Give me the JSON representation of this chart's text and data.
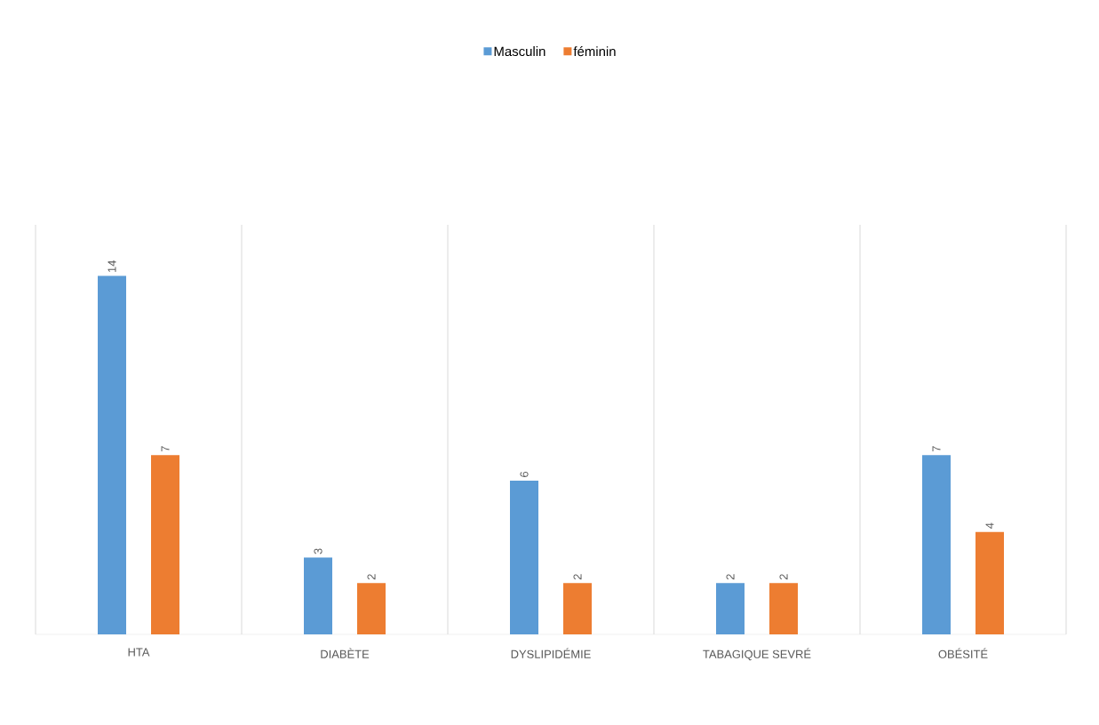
{
  "chart_data": {
    "type": "bar",
    "categories": [
      "HTA",
      "DIABÈTE",
      "DYSLIPIDÉMIE",
      "TABAGIQUE SEVRÉ",
      "OBÉSITÉ"
    ],
    "series": [
      {
        "name": "Masculin",
        "color": "#5b9bd5",
        "values": [
          14,
          3,
          6,
          2,
          7
        ]
      },
      {
        "name": "féminin",
        "color": "#ed7d31",
        "values": [
          7,
          2,
          2,
          2,
          4
        ]
      }
    ],
    "ylim": [
      0,
      16
    ],
    "data_labels": true,
    "grid": "x",
    "legend": "top"
  }
}
